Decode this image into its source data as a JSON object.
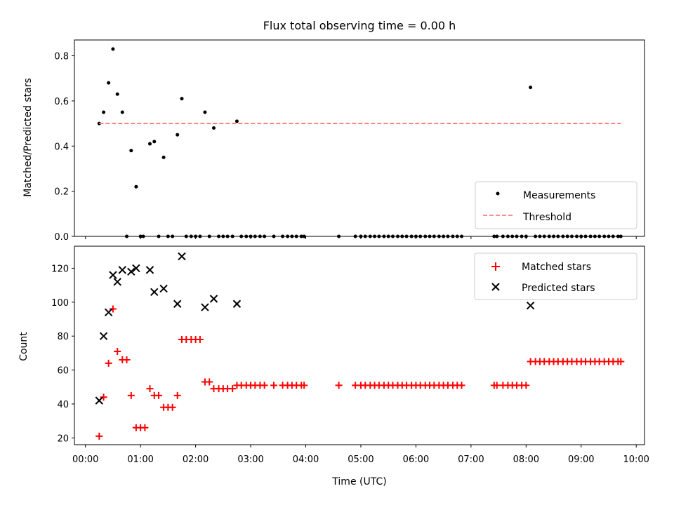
{
  "chart_data": [
    {
      "type": "scatter",
      "title": "Flux total observing time = 0.00 h",
      "xlabel": "",
      "ylabel": "Matched/Predicted stars",
      "xlim_hours": [
        -0.2,
        10.15
      ],
      "ylim": [
        0.0,
        0.87
      ],
      "yticks": [
        "0.0",
        "0.2",
        "0.4",
        "0.6",
        "0.8"
      ],
      "ytick_values": [
        0.0,
        0.2,
        0.4,
        0.6,
        0.8
      ],
      "grid": false,
      "legend_position": "lower-right",
      "series": [
        {
          "name": "Measurements",
          "marker": "dot",
          "color": "#000000",
          "x": [
            0.25,
            0.33,
            0.42,
            0.5,
            0.58,
            0.67,
            0.75,
            0.83,
            0.92,
            1.0,
            1.05,
            1.17,
            1.25,
            1.33,
            1.42,
            1.5,
            1.58,
            1.67,
            1.75,
            1.83,
            1.92,
            2.0,
            2.08,
            2.17,
            2.25,
            2.33,
            2.42,
            2.5,
            2.58,
            2.67,
            2.75,
            2.83,
            2.92,
            3.0,
            3.08,
            3.17,
            3.25,
            3.42,
            3.58,
            3.67,
            3.75,
            3.83,
            3.92,
            3.97,
            4.6,
            4.9,
            5.0,
            5.08,
            5.17,
            5.25,
            5.33,
            5.42,
            5.5,
            5.58,
            5.67,
            5.75,
            5.83,
            5.92,
            6.0,
            6.08,
            6.17,
            6.25,
            6.33,
            6.42,
            6.5,
            6.58,
            6.67,
            6.75,
            6.83,
            7.42,
            7.47,
            7.58,
            7.67,
            7.75,
            7.83,
            7.92,
            8.0,
            8.08,
            8.17,
            8.25,
            8.33,
            8.42,
            8.5,
            8.58,
            8.67,
            8.75,
            8.83,
            8.92,
            9.0,
            9.08,
            9.17,
            9.25,
            9.33,
            9.42,
            9.5,
            9.58,
            9.67,
            9.72
          ],
          "y": [
            0.5,
            0.55,
            0.68,
            0.83,
            0.63,
            0.55,
            0.0,
            0.38,
            0.22,
            0.0,
            0.0,
            0.41,
            0.42,
            0.0,
            0.35,
            0.0,
            0.0,
            0.45,
            0.61,
            0.0,
            0.0,
            0.0,
            0.0,
            0.55,
            0.0,
            0.48,
            0.0,
            0.0,
            0.0,
            0.0,
            0.51,
            0.0,
            0.0,
            0.0,
            0.0,
            0.0,
            0.0,
            0.0,
            0.0,
            0.0,
            0.0,
            0.0,
            0.0,
            0.0,
            0.0,
            0.0,
            0.0,
            0.0,
            0.0,
            0.0,
            0.0,
            0.0,
            0.0,
            0.0,
            0.0,
            0.0,
            0.0,
            0.0,
            0.0,
            0.0,
            0.0,
            0.0,
            0.0,
            0.0,
            0.0,
            0.0,
            0.0,
            0.0,
            0.0,
            0.0,
            0.0,
            0.0,
            0.0,
            0.0,
            0.0,
            0.0,
            0.0,
            0.66,
            0.0,
            0.0,
            0.0,
            0.0,
            0.0,
            0.0,
            0.0,
            0.0,
            0.0,
            0.0,
            0.0,
            0.0,
            0.0,
            0.0,
            0.0,
            0.0,
            0.0,
            0.0,
            0.0,
            0.0
          ]
        },
        {
          "name": "Threshold",
          "type": "line",
          "style": "dashed",
          "color": "#ff7b7b",
          "x": [
            0.25,
            9.72
          ],
          "y": [
            0.5,
            0.5
          ]
        }
      ]
    },
    {
      "type": "scatter",
      "title": "",
      "xlabel": "Time (UTC)",
      "ylabel": "Count",
      "xlim_hours": [
        -0.2,
        10.15
      ],
      "ylim": [
        16,
        133
      ],
      "xticks": [
        "00:00",
        "01:00",
        "02:00",
        "03:00",
        "04:00",
        "05:00",
        "06:00",
        "07:00",
        "08:00",
        "09:00",
        "10:00"
      ],
      "xtick_hours": [
        0,
        1,
        2,
        3,
        4,
        5,
        6,
        7,
        8,
        9,
        10
      ],
      "yticks": [
        "20",
        "40",
        "60",
        "80",
        "100",
        "120"
      ],
      "ytick_values": [
        20,
        40,
        60,
        80,
        100,
        120
      ],
      "grid": false,
      "legend_position": "upper-right",
      "series": [
        {
          "name": "Matched stars",
          "marker": "plus",
          "color": "#ff0000",
          "x": [
            0.25,
            0.33,
            0.42,
            0.5,
            0.58,
            0.67,
            0.75,
            0.83,
            0.92,
            1.0,
            1.08,
            1.17,
            1.25,
            1.33,
            1.42,
            1.5,
            1.58,
            1.67,
            1.75,
            1.83,
            1.92,
            2.0,
            2.08,
            2.17,
            2.25,
            2.33,
            2.42,
            2.5,
            2.58,
            2.67,
            2.75,
            2.83,
            2.92,
            3.0,
            3.08,
            3.17,
            3.25,
            3.42,
            3.58,
            3.67,
            3.75,
            3.83,
            3.92,
            3.97,
            4.6,
            4.9,
            5.0,
            5.08,
            5.17,
            5.25,
            5.33,
            5.42,
            5.5,
            5.58,
            5.67,
            5.75,
            5.83,
            5.92,
            6.0,
            6.08,
            6.17,
            6.25,
            6.33,
            6.42,
            6.5,
            6.58,
            6.67,
            6.75,
            6.83,
            7.42,
            7.47,
            7.58,
            7.67,
            7.75,
            7.83,
            7.92,
            8.0,
            8.08,
            8.17,
            8.25,
            8.33,
            8.42,
            8.5,
            8.58,
            8.67,
            8.75,
            8.83,
            8.92,
            9.0,
            9.08,
            9.17,
            9.25,
            9.33,
            9.42,
            9.5,
            9.58,
            9.67,
            9.72
          ],
          "y": [
            21,
            44,
            64,
            96,
            71,
            66,
            66,
            45,
            26,
            26,
            26,
            49,
            45,
            45,
            38,
            38,
            38,
            45,
            78,
            78,
            78,
            78,
            78,
            53,
            53,
            49,
            49,
            49,
            49,
            49,
            51,
            51,
            51,
            51,
            51,
            51,
            51,
            51,
            51,
            51,
            51,
            51,
            51,
            51,
            51,
            51,
            51,
            51,
            51,
            51,
            51,
            51,
            51,
            51,
            51,
            51,
            51,
            51,
            51,
            51,
            51,
            51,
            51,
            51,
            51,
            51,
            51,
            51,
            51,
            51,
            51,
            51,
            51,
            51,
            51,
            51,
            51,
            65,
            65,
            65,
            65,
            65,
            65,
            65,
            65,
            65,
            65,
            65,
            65,
            65,
            65,
            65,
            65,
            65,
            65,
            65,
            65,
            65
          ]
        },
        {
          "name": "Predicted stars",
          "marker": "x",
          "color": "#000000",
          "x": [
            0.25,
            0.33,
            0.42,
            0.5,
            0.58,
            0.67,
            0.83,
            0.92,
            1.17,
            1.25,
            1.42,
            1.67,
            1.75,
            2.17,
            2.33,
            2.75,
            8.08
          ],
          "y": [
            42,
            80,
            94,
            116,
            112,
            119,
            118,
            120,
            119,
            106,
            108,
            99,
            127,
            97,
            102,
            99,
            98
          ]
        }
      ]
    }
  ]
}
